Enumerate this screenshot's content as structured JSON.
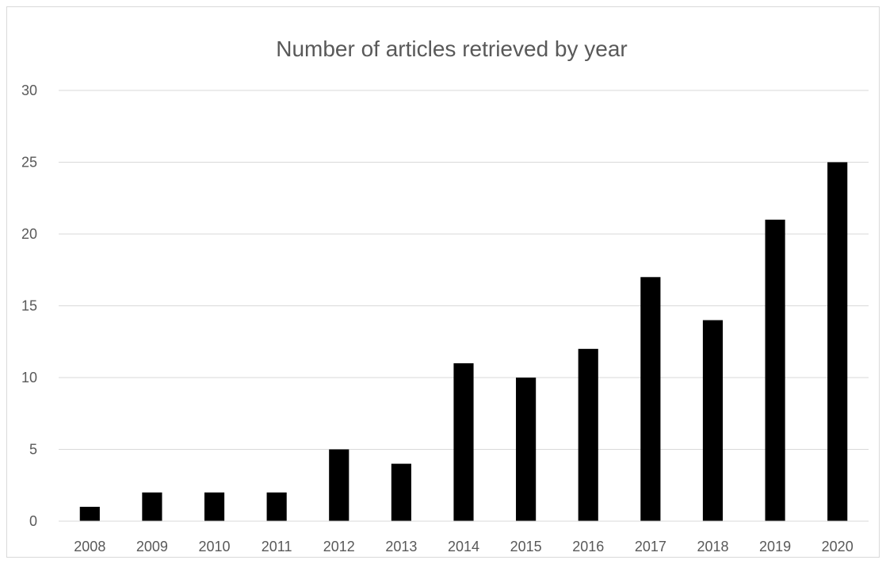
{
  "chart_data": {
    "type": "bar",
    "title": "Number of articles retrieved by year",
    "categories": [
      "2008",
      "2009",
      "2010",
      "2011",
      "2012",
      "2013",
      "2014",
      "2015",
      "2016",
      "2017",
      "2018",
      "2019",
      "2020"
    ],
    "values": [
      1,
      2,
      2,
      2,
      5,
      4,
      11,
      10,
      12,
      17,
      14,
      21,
      25
    ],
    "xlabel": "",
    "ylabel": "",
    "ylim": [
      0,
      30
    ],
    "yticks": [
      "0",
      "5",
      "10",
      "15",
      "20",
      "25",
      "30"
    ],
    "grid": true,
    "legend": "none",
    "colors": {
      "bar": "#000000",
      "grid": "#d9d9d9",
      "text": "#595959",
      "frame": "#d9d9d9"
    }
  }
}
